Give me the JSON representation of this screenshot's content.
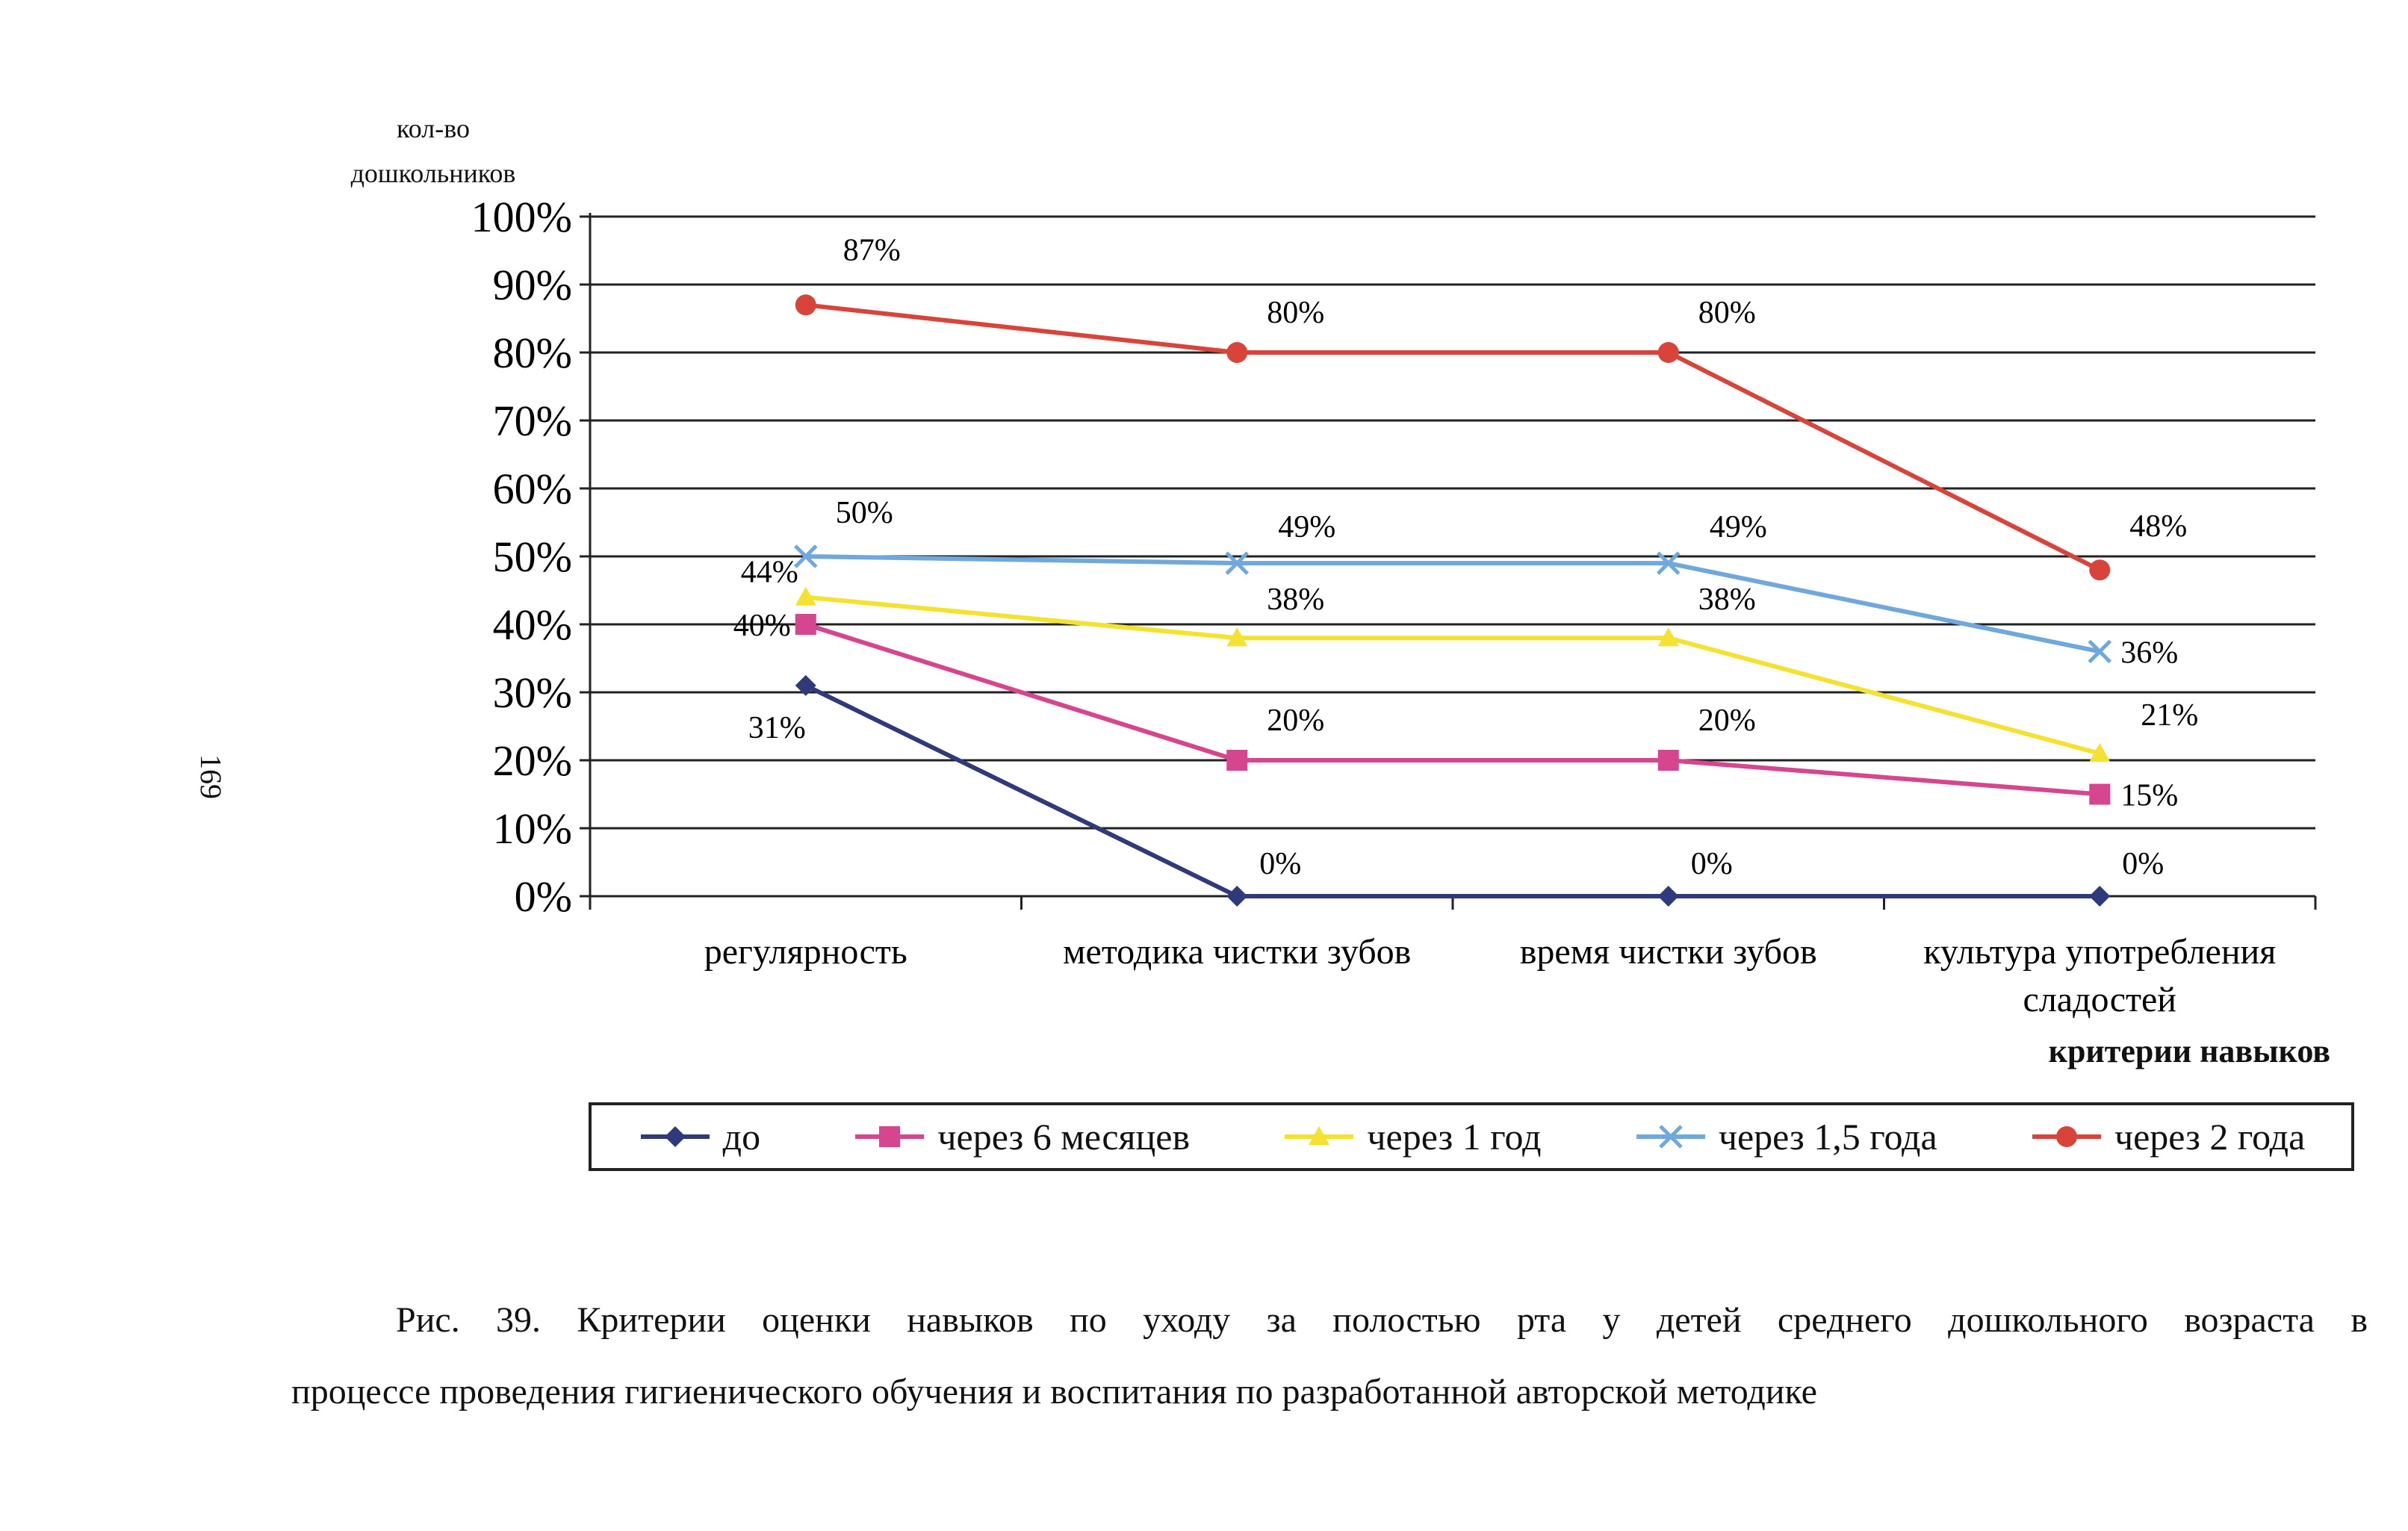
{
  "page_number": "169",
  "caption": {
    "line1": "Рис. 39. Критерии оценки навыков по уходу за полостью рта у детей среднего дошкольного возраста в",
    "line2": "процессе проведения гигиенического обучения и воспитания по разработанной авторской методике"
  },
  "chart_data": {
    "type": "line",
    "title": "",
    "ylabel": "кол-во дошкольников",
    "ylabel_lines": [
      "кол-во",
      "дошкольников"
    ],
    "xlabel": "критерии навыков",
    "ylim": [
      0,
      100
    ],
    "y_ticks": [
      "0%",
      "10%",
      "20%",
      "30%",
      "40%",
      "50%",
      "60%",
      "70%",
      "80%",
      "90%",
      "100%"
    ],
    "grid": true,
    "legend_position": "bottom",
    "categories": [
      "регулярность",
      "методика чистки зубов",
      "время чистки зубов",
      "культура употребления сладостей"
    ],
    "category_lines": [
      [
        "регулярность"
      ],
      [
        "методика чистки зубов"
      ],
      [
        "время чистки зубов"
      ],
      [
        "культура употребления",
        "сладостей"
      ]
    ],
    "series": [
      {
        "name": "до",
        "values": [
          31,
          0,
          0,
          0
        ],
        "labels": [
          "31%",
          "0%",
          "0%",
          "0%"
        ],
        "color": "#2e3a7a",
        "marker": "diamond"
      },
      {
        "name": "через 6 месяцев",
        "values": [
          40,
          20,
          20,
          15
        ],
        "labels": [
          "40%",
          "20%",
          "20%",
          "15%"
        ],
        "color": "#d6468f",
        "marker": "square"
      },
      {
        "name": "через 1 год",
        "values": [
          44,
          38,
          38,
          21
        ],
        "labels": [
          "44%",
          "38%",
          "38%",
          "21%"
        ],
        "color": "#f4e130",
        "marker": "triangle"
      },
      {
        "name": "через 1,5 года",
        "values": [
          50,
          49,
          49,
          36
        ],
        "labels": [
          "50%",
          "49%",
          "49%",
          "36%"
        ],
        "color": "#6fa8dc",
        "marker": "cross"
      },
      {
        "name": "через 2 года",
        "values": [
          87,
          80,
          80,
          48
        ],
        "labels": [
          "87%",
          "80%",
          "80%",
          "48%"
        ],
        "color": "#d9443a",
        "marker": "circle"
      }
    ]
  }
}
